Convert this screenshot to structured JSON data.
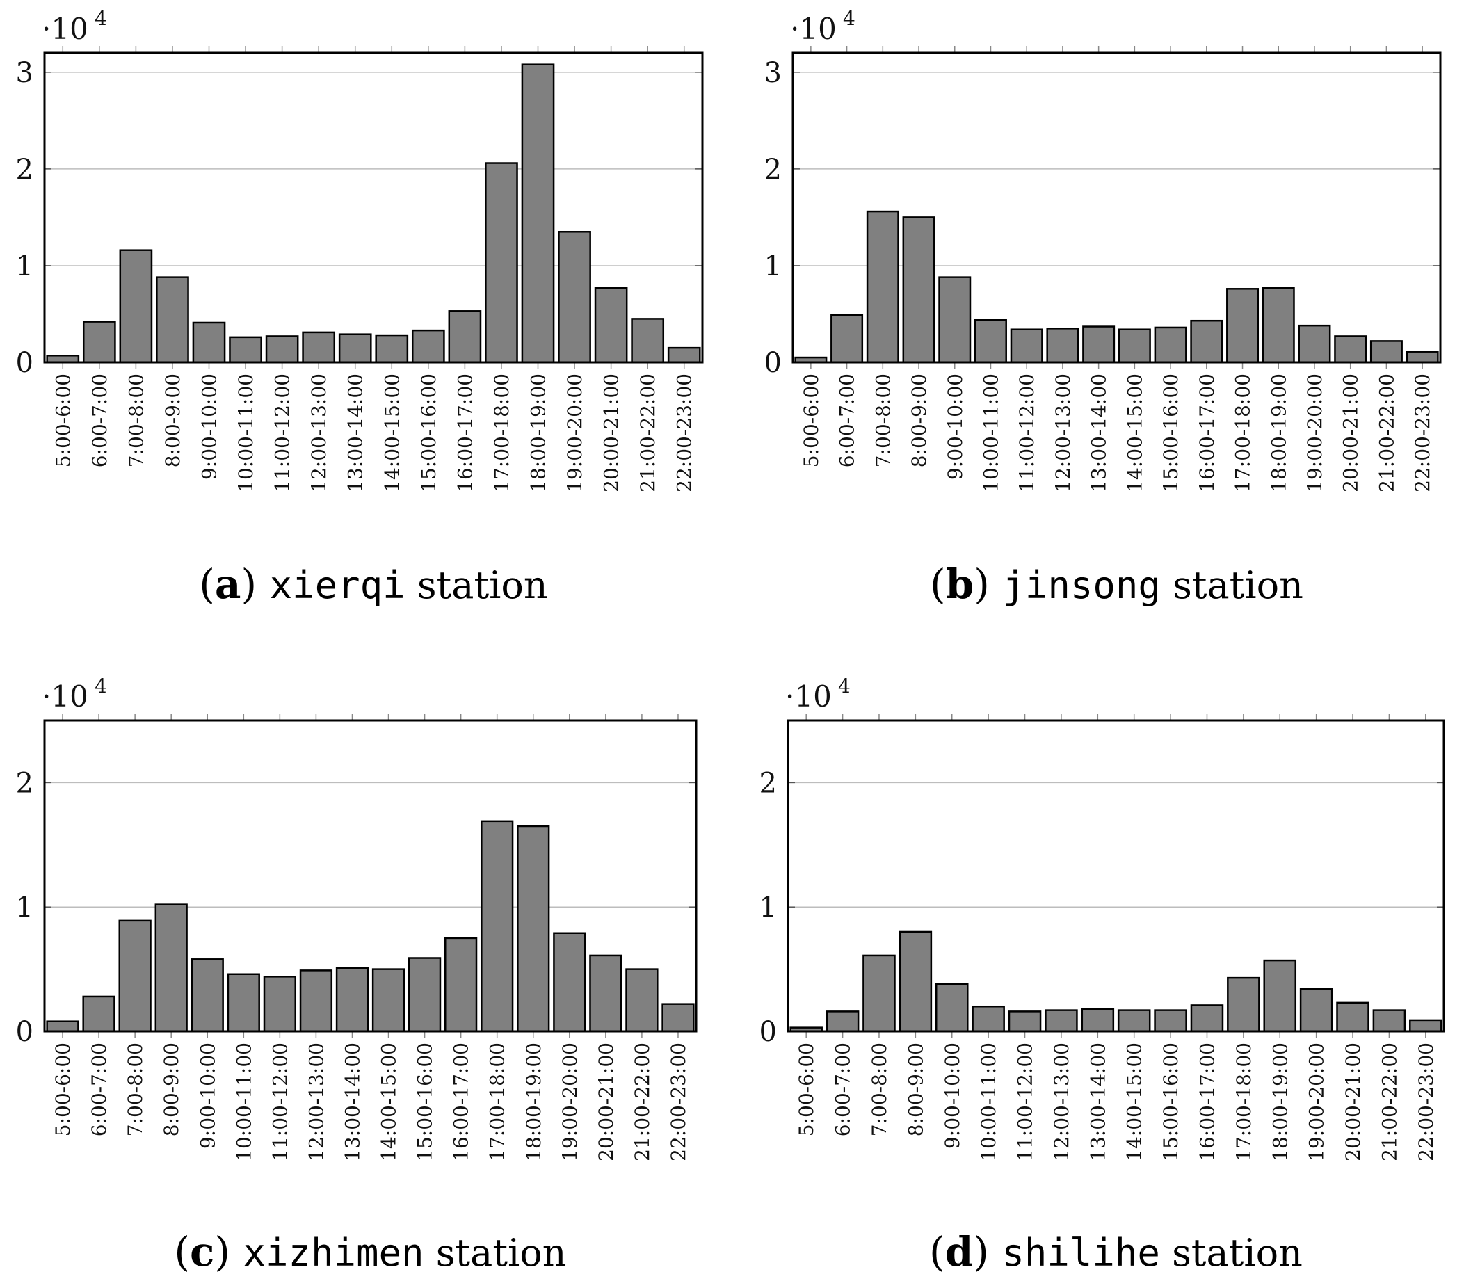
{
  "chart_data": [
    {
      "type": "bar",
      "caption": {
        "letter": "a",
        "name": "xierqi",
        "suffix": "station"
      },
      "scale_label": "·10",
      "scale_exponent": "4",
      "ylim": [
        0,
        3.2
      ],
      "yticks": [
        0,
        1,
        2,
        3
      ],
      "ytick_labels": [
        "0",
        "1",
        "2",
        "3"
      ],
      "bar_color": "#808080",
      "categories": [
        "5:00-6:00",
        "6:00-7:00",
        "7:00-8:00",
        "8:00-9:00",
        "9:00-10:00",
        "10:00-11:00",
        "11:00-12:00",
        "12:00-13:00",
        "13:00-14:00",
        "14:00-15:00",
        "15:00-16:00",
        "16:00-17:00",
        "17:00-18:00",
        "18:00-19:00",
        "19:00-20:00",
        "20:00-21:00",
        "21:00-22:00",
        "22:00-23:00"
      ],
      "values": [
        0.07,
        0.42,
        1.16,
        0.88,
        0.41,
        0.26,
        0.27,
        0.31,
        0.29,
        0.28,
        0.33,
        0.53,
        2.06,
        3.08,
        1.35,
        0.77,
        0.45,
        0.15
      ]
    },
    {
      "type": "bar",
      "caption": {
        "letter": "b",
        "name": "jinsong",
        "suffix": "station"
      },
      "scale_label": "·10",
      "scale_exponent": "4",
      "ylim": [
        0,
        3.2
      ],
      "yticks": [
        0,
        1,
        2,
        3
      ],
      "ytick_labels": [
        "0",
        "1",
        "2",
        "3"
      ],
      "bar_color": "#808080",
      "categories": [
        "5:00-6:00",
        "6:00-7:00",
        "7:00-8:00",
        "8:00-9:00",
        "9:00-10:00",
        "10:00-11:00",
        "11:00-12:00",
        "12:00-13:00",
        "13:00-14:00",
        "14:00-15:00",
        "15:00-16:00",
        "16:00-17:00",
        "17:00-18:00",
        "18:00-19:00",
        "19:00-20:00",
        "20:00-21:00",
        "21:00-22:00",
        "22:00-23:00"
      ],
      "values": [
        0.05,
        0.49,
        1.56,
        1.5,
        0.88,
        0.44,
        0.34,
        0.35,
        0.37,
        0.34,
        0.36,
        0.43,
        0.76,
        0.77,
        0.38,
        0.27,
        0.22,
        0.11
      ]
    },
    {
      "type": "bar",
      "caption": {
        "letter": "c",
        "name": "xizhimen",
        "suffix": "station"
      },
      "scale_label": "·10",
      "scale_exponent": "4",
      "ylim": [
        0,
        2.5
      ],
      "yticks": [
        0,
        1,
        2
      ],
      "ytick_labels": [
        "0",
        "1",
        "2"
      ],
      "bar_color": "#808080",
      "categories": [
        "5:00-6:00",
        "6:00-7:00",
        "7:00-8:00",
        "8:00-9:00",
        "9:00-10:00",
        "10:00-11:00",
        "11:00-12:00",
        "12:00-13:00",
        "13:00-14:00",
        "14:00-15:00",
        "15:00-16:00",
        "16:00-17:00",
        "17:00-18:00",
        "18:00-19:00",
        "19:00-20:00",
        "20:00-21:00",
        "21:00-22:00",
        "22:00-23:00"
      ],
      "values": [
        0.08,
        0.28,
        0.89,
        1.02,
        0.58,
        0.46,
        0.44,
        0.49,
        0.51,
        0.5,
        0.59,
        0.75,
        1.69,
        1.65,
        0.79,
        0.61,
        0.5,
        0.22
      ]
    },
    {
      "type": "bar",
      "caption": {
        "letter": "d",
        "name": "shilihe",
        "suffix": "station"
      },
      "scale_label": "·10",
      "scale_exponent": "4",
      "ylim": [
        0,
        2.5
      ],
      "yticks": [
        0,
        1,
        2
      ],
      "ytick_labels": [
        "0",
        "1",
        "2"
      ],
      "bar_color": "#808080",
      "categories": [
        "5:00-6:00",
        "6:00-7:00",
        "7:00-8:00",
        "8:00-9:00",
        "9:00-10:00",
        "10:00-11:00",
        "11:00-12:00",
        "12:00-13:00",
        "13:00-14:00",
        "14:00-15:00",
        "15:00-16:00",
        "16:00-17:00",
        "17:00-18:00",
        "18:00-19:00",
        "19:00-20:00",
        "20:00-21:00",
        "21:00-22:00",
        "22:00-23:00"
      ],
      "values": [
        0.03,
        0.16,
        0.61,
        0.8,
        0.38,
        0.2,
        0.16,
        0.17,
        0.18,
        0.17,
        0.17,
        0.21,
        0.43,
        0.57,
        0.34,
        0.23,
        0.17,
        0.09
      ]
    }
  ]
}
